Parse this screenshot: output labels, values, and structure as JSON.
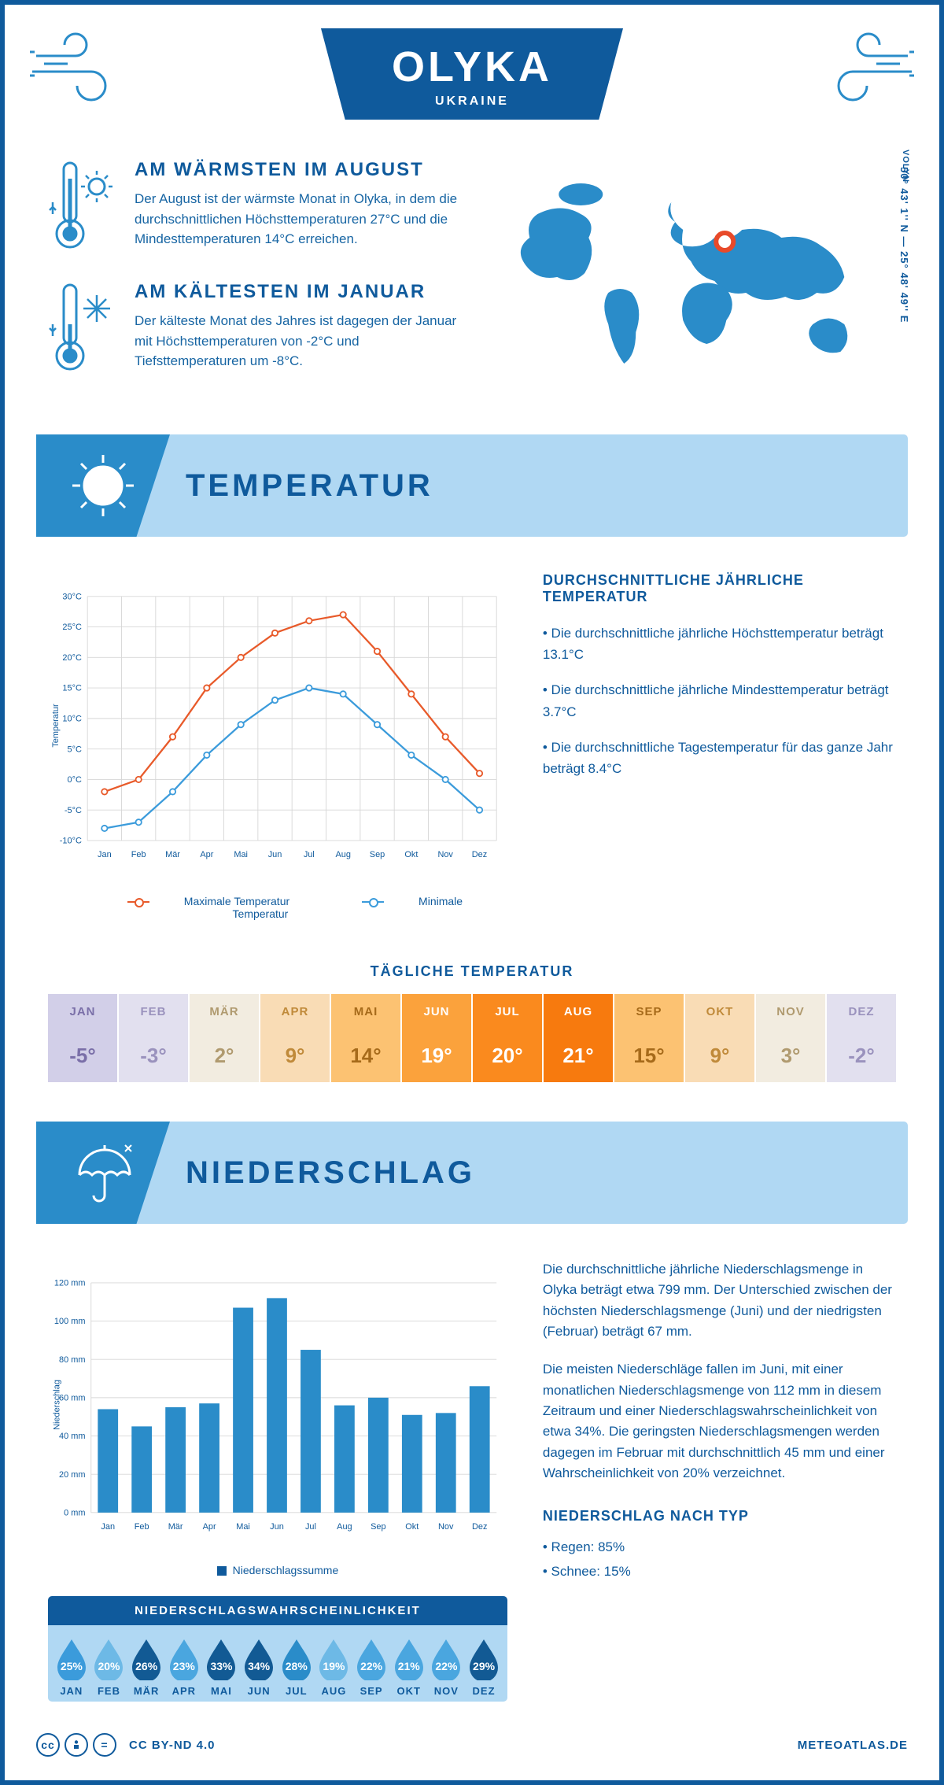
{
  "header": {
    "city": "OLYKA",
    "country": "UKRAINE",
    "region": "VOLYN",
    "coords": "50° 43' 1'' N — 25° 48' 49'' E"
  },
  "colors": {
    "primary": "#0f5a9c",
    "secondary": "#2a8cc9",
    "lightblue": "#b0d8f3",
    "maxline": "#e85a2a",
    "minline": "#3b9bdb",
    "grid": "#d7d7d7"
  },
  "facts": {
    "warm": {
      "title": "AM WÄRMSTEN IM AUGUST",
      "text": "Der August ist der wärmste Monat in Olyka, in dem die durchschnittlichen Höchsttemperaturen 27°C und die Mindesttemperaturen 14°C erreichen."
    },
    "cold": {
      "title": "AM KÄLTESTEN IM JANUAR",
      "text": "Der kälteste Monat des Jahres ist dagegen der Januar mit Höchsttemperaturen von -2°C und Tiefsttemperaturen um -8°C."
    }
  },
  "temperature": {
    "section_title": "TEMPERATUR",
    "chart": {
      "type": "line",
      "ylabel": "Temperatur",
      "ylim": [
        -10,
        30
      ],
      "ytick_step": 5,
      "ytick_suffix": "°C",
      "months": [
        "Jan",
        "Feb",
        "Mär",
        "Apr",
        "Mai",
        "Jun",
        "Jul",
        "Aug",
        "Sep",
        "Okt",
        "Nov",
        "Dez"
      ],
      "max_series": [
        -2,
        0,
        7,
        15,
        20,
        24,
        26,
        27,
        21,
        14,
        7,
        1
      ],
      "min_series": [
        -8,
        -7,
        -2,
        4,
        9,
        13,
        15,
        14,
        9,
        4,
        0,
        -5
      ],
      "max_color": "#e85a2a",
      "min_color": "#3b9bdb",
      "line_width": 2.5,
      "marker_radius": 4,
      "legend_max": "Maximale Temperatur",
      "legend_min": "Minimale Temperatur"
    },
    "info": {
      "heading": "DURCHSCHNITTLICHE JÄHRLICHE TEMPERATUR",
      "bullets": [
        "• Die durchschnittliche jährliche Höchsttemperatur beträgt 13.1°C",
        "• Die durchschnittliche jährliche Mindesttemperatur beträgt 3.7°C",
        "• Die durchschnittliche Tagestemperatur für das ganze Jahr beträgt 8.4°C"
      ]
    },
    "daily": {
      "title": "TÄGLICHE TEMPERATUR",
      "months": [
        "JAN",
        "FEB",
        "MÄR",
        "APR",
        "MAI",
        "JUN",
        "JUL",
        "AUG",
        "SEP",
        "OKT",
        "NOV",
        "DEZ"
      ],
      "values": [
        "-5°",
        "-3°",
        "2°",
        "9°",
        "14°",
        "19°",
        "20°",
        "21°",
        "15°",
        "9°",
        "3°",
        "-2°"
      ],
      "cell_colors": [
        "#d2cfe8",
        "#e2e0ef",
        "#f2ece0",
        "#f9dcb5",
        "#fcc272",
        "#fba23c",
        "#fa8a1e",
        "#f77a0e",
        "#fcc272",
        "#f9dcb5",
        "#f2ece0",
        "#e2e0ef"
      ],
      "text_colors": [
        "#7a6fa8",
        "#9a92bd",
        "#b09a6f",
        "#c08a3a",
        "#a66a1a",
        "#ffffff",
        "#ffffff",
        "#ffffff",
        "#a66a1a",
        "#c08a3a",
        "#b09a6f",
        "#9a92bd"
      ]
    }
  },
  "precipitation": {
    "section_title": "NIEDERSCHLAG",
    "chart": {
      "type": "bar",
      "ylabel": "Niederschlag",
      "ylim": [
        0,
        120
      ],
      "ytick_step": 20,
      "ytick_suffix": " mm",
      "months": [
        "Jan",
        "Feb",
        "Mär",
        "Apr",
        "Mai",
        "Jun",
        "Jul",
        "Aug",
        "Sep",
        "Okt",
        "Nov",
        "Dez"
      ],
      "values": [
        54,
        45,
        55,
        57,
        107,
        112,
        85,
        56,
        60,
        51,
        52,
        66
      ],
      "bar_color": "#2a8cc9",
      "bar_width": 0.6,
      "legend": "Niederschlagssumme"
    },
    "text": {
      "p1": "Die durchschnittliche jährliche Niederschlagsmenge in Olyka beträgt etwa 799 mm. Der Unterschied zwischen der höchsten Niederschlagsmenge (Juni) und der niedrigsten (Februar) beträgt 67 mm.",
      "p2": "Die meisten Niederschläge fallen im Juni, mit einer monatlichen Niederschlagsmenge von 112 mm in diesem Zeitraum und einer Niederschlagswahrscheinlichkeit von etwa 34%. Die geringsten Niederschlagsmengen werden dagegen im Februar mit durchschnittlich 45 mm und einer Wahrscheinlichkeit von 20% verzeichnet.",
      "type_heading": "NIEDERSCHLAG NACH TYP",
      "type_rain": "• Regen: 85%",
      "type_snow": "• Schnee: 15%"
    },
    "probability": {
      "title": "NIEDERSCHLAGSWAHRSCHEINLICHKEIT",
      "months": [
        "JAN",
        "FEB",
        "MÄR",
        "APR",
        "MAI",
        "JUN",
        "JUL",
        "AUG",
        "SEP",
        "OKT",
        "NOV",
        "DEZ"
      ],
      "values": [
        "25%",
        "20%",
        "26%",
        "23%",
        "33%",
        "34%",
        "28%",
        "19%",
        "22%",
        "21%",
        "22%",
        "29%"
      ],
      "drop_colors": [
        "#3b9bdb",
        "#6db9e6",
        "#125a94",
        "#4aa6df",
        "#125a94",
        "#125a94",
        "#2a8cc9",
        "#6db9e6",
        "#4aa6df",
        "#4aa6df",
        "#4aa6df",
        "#125a94"
      ]
    }
  },
  "footer": {
    "license": "CC BY-ND 4.0",
    "site": "METEOATLAS.DE"
  }
}
